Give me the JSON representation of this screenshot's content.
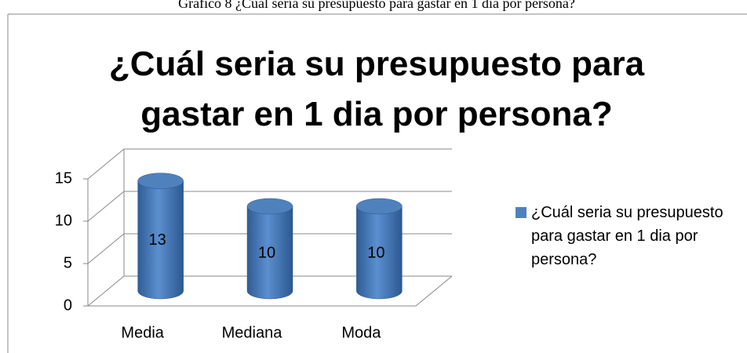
{
  "caption": "Gráfico 8 ¿Cuál seria su presupuesto para gastar en 1 dia por persona?",
  "chart_data": {
    "type": "cylinder_bar",
    "title": "¿Cuál seria su presupuesto para gastar en 1 dia por persona?",
    "categories": [
      "Media",
      "Mediana",
      "Moda"
    ],
    "series": [
      {
        "name": "¿Cuál seria su presupuesto para gastar en 1 dia por persona?",
        "color": "#4f81bd",
        "values": [
          13,
          10,
          10
        ]
      }
    ],
    "ylim": [
      0,
      15
    ],
    "yticks": [
      0,
      5,
      10,
      15
    ],
    "grid": true,
    "legend": "right"
  }
}
